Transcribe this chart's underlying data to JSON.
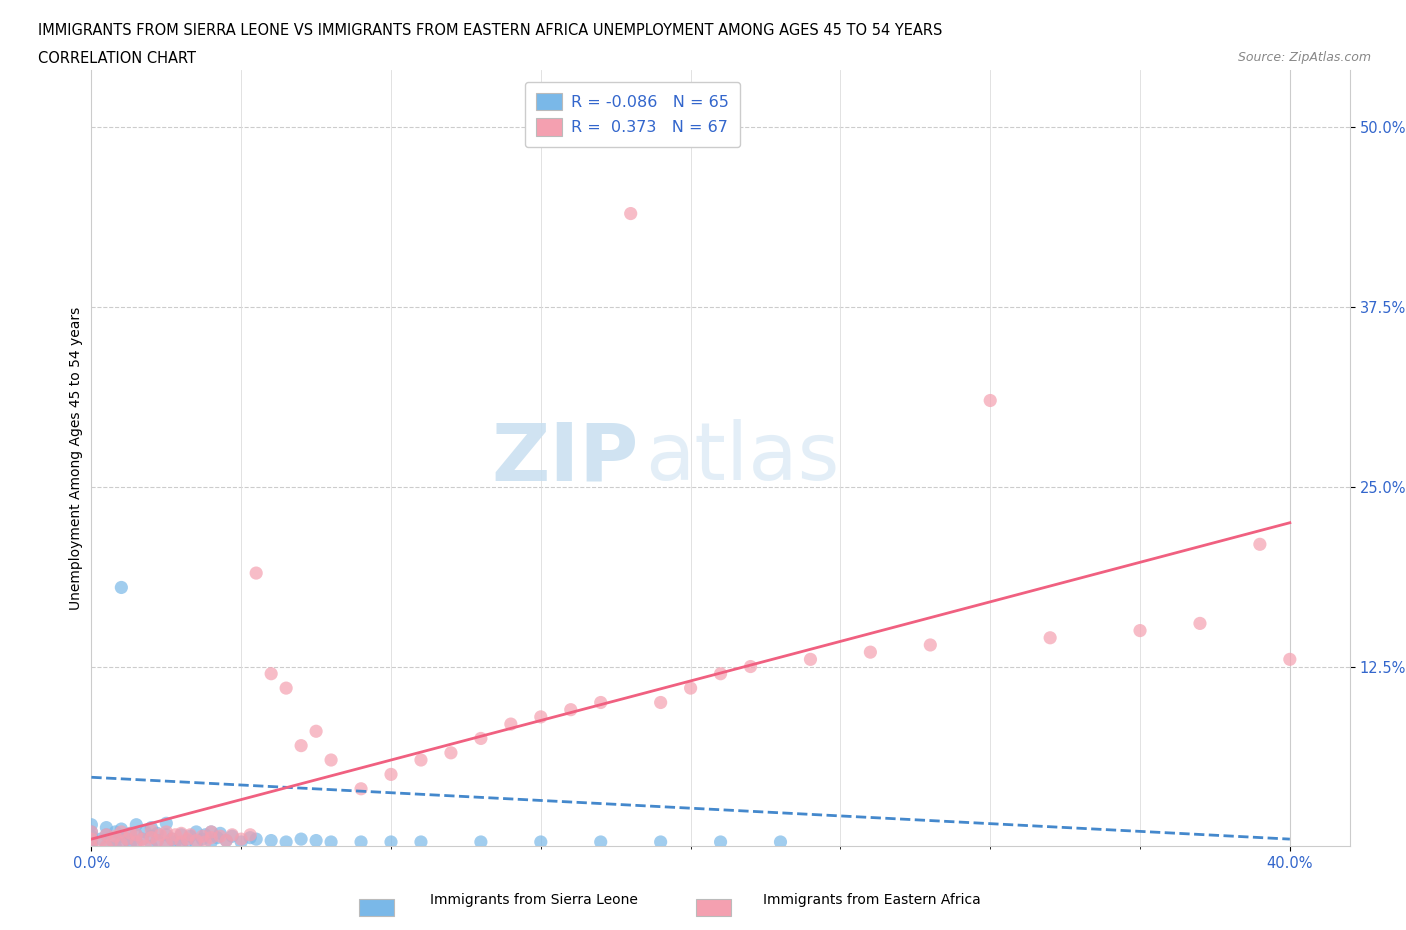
{
  "title_line1": "IMMIGRANTS FROM SIERRA LEONE VS IMMIGRANTS FROM EASTERN AFRICA UNEMPLOYMENT AMONG AGES 45 TO 54 YEARS",
  "title_line2": "CORRELATION CHART",
  "source_text": "Source: ZipAtlas.com",
  "ylabel": "Unemployment Among Ages 45 to 54 years",
  "xlim": [
    0.0,
    0.42
  ],
  "ylim": [
    0.0,
    0.54
  ],
  "color_sl": "#7ab8e8",
  "color_ea": "#f4a0b0",
  "color_sl_line": "#4488cc",
  "color_ea_line": "#f06080",
  "watermark_zip": "ZIP",
  "watermark_atlas": "atlas",
  "sl_R": -0.086,
  "sl_N": 65,
  "ea_R": 0.373,
  "ea_N": 67,
  "sl_trend_x": [
    0.0,
    0.4
  ],
  "sl_trend_y": [
    0.048,
    0.005
  ],
  "ea_trend_x": [
    0.0,
    0.4
  ],
  "ea_trend_y": [
    0.005,
    0.225
  ],
  "sierra_leone_x": [
    0.0,
    0.0,
    0.0,
    0.0,
    0.0,
    0.003,
    0.005,
    0.005,
    0.005,
    0.007,
    0.008,
    0.008,
    0.01,
    0.01,
    0.01,
    0.012,
    0.013,
    0.013,
    0.015,
    0.015,
    0.015,
    0.017,
    0.018,
    0.02,
    0.02,
    0.02,
    0.022,
    0.022,
    0.025,
    0.025,
    0.025,
    0.027,
    0.028,
    0.03,
    0.03,
    0.032,
    0.033,
    0.035,
    0.035,
    0.037,
    0.038,
    0.04,
    0.04,
    0.042,
    0.043,
    0.045,
    0.047,
    0.05,
    0.053,
    0.055,
    0.06,
    0.065,
    0.07,
    0.075,
    0.08,
    0.09,
    0.1,
    0.11,
    0.13,
    0.15,
    0.17,
    0.19,
    0.21,
    0.23,
    0.01
  ],
  "sierra_leone_y": [
    0.0,
    0.003,
    0.007,
    0.01,
    0.015,
    0.005,
    0.0,
    0.008,
    0.013,
    0.004,
    0.0,
    0.01,
    0.002,
    0.007,
    0.012,
    0.005,
    0.001,
    0.009,
    0.003,
    0.008,
    0.015,
    0.005,
    0.01,
    0.0,
    0.007,
    0.013,
    0.004,
    0.009,
    0.001,
    0.008,
    0.016,
    0.005,
    0.003,
    0.0,
    0.008,
    0.004,
    0.007,
    0.002,
    0.01,
    0.005,
    0.008,
    0.003,
    0.01,
    0.006,
    0.009,
    0.004,
    0.007,
    0.003,
    0.006,
    0.005,
    0.004,
    0.003,
    0.005,
    0.004,
    0.003,
    0.003,
    0.003,
    0.003,
    0.003,
    0.003,
    0.003,
    0.003,
    0.003,
    0.003,
    0.18
  ],
  "eastern_africa_x": [
    0.0,
    0.0,
    0.0,
    0.003,
    0.005,
    0.005,
    0.007,
    0.008,
    0.01,
    0.01,
    0.012,
    0.013,
    0.015,
    0.015,
    0.017,
    0.018,
    0.02,
    0.02,
    0.022,
    0.023,
    0.025,
    0.025,
    0.027,
    0.028,
    0.03,
    0.03,
    0.032,
    0.033,
    0.035,
    0.037,
    0.038,
    0.04,
    0.04,
    0.043,
    0.045,
    0.047,
    0.05,
    0.053,
    0.055,
    0.06,
    0.065,
    0.07,
    0.075,
    0.08,
    0.09,
    0.1,
    0.11,
    0.12,
    0.13,
    0.14,
    0.15,
    0.16,
    0.17,
    0.18,
    0.19,
    0.2,
    0.21,
    0.22,
    0.24,
    0.26,
    0.28,
    0.3,
    0.32,
    0.35,
    0.37,
    0.39,
    0.4
  ],
  "eastern_africa_y": [
    0.0,
    0.005,
    0.01,
    0.003,
    0.0,
    0.008,
    0.004,
    0.007,
    0.002,
    0.01,
    0.005,
    0.009,
    0.003,
    0.008,
    0.005,
    0.0,
    0.006,
    0.011,
    0.004,
    0.008,
    0.002,
    0.01,
    0.005,
    0.008,
    0.003,
    0.009,
    0.005,
    0.008,
    0.004,
    0.007,
    0.003,
    0.006,
    0.01,
    0.007,
    0.004,
    0.008,
    0.005,
    0.008,
    0.19,
    0.12,
    0.11,
    0.07,
    0.08,
    0.06,
    0.04,
    0.05,
    0.06,
    0.065,
    0.075,
    0.085,
    0.09,
    0.095,
    0.1,
    0.44,
    0.1,
    0.11,
    0.12,
    0.125,
    0.13,
    0.135,
    0.14,
    0.31,
    0.145,
    0.15,
    0.155,
    0.21,
    0.13
  ]
}
